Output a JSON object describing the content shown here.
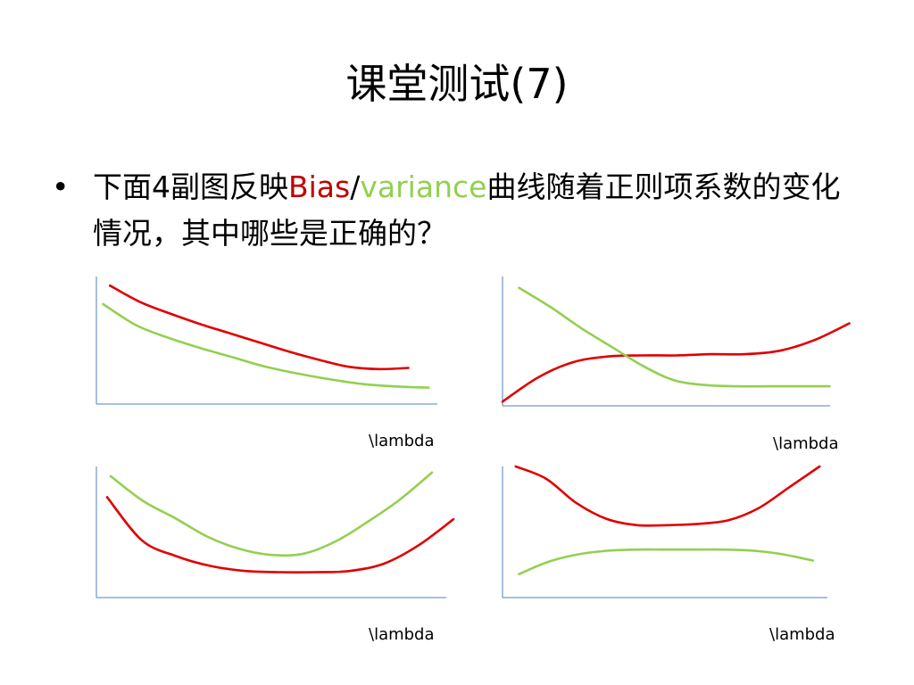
{
  "slide": {
    "title": "课堂测试(7)",
    "bullet_symbol": "•",
    "question_part1": "下面4副图反映",
    "bias_word": "Bias",
    "slash": "/",
    "variance_word": "variance",
    "question_part2": "曲线随着正则项系数的变化情况，其中哪些是正确的？"
  },
  "colors": {
    "bias": "#e00000",
    "variance": "#92d050",
    "axis": "#4f81bd"
  },
  "chart_data": [
    {
      "type": "line",
      "xlabel": "\\lambda",
      "x": [
        0.0,
        0.1,
        0.2,
        0.3,
        0.4,
        0.5,
        0.6,
        0.7,
        0.8,
        0.9,
        1.0
      ],
      "series": [
        {
          "color": "#e00000",
          "values": [
            0.96,
            0.82,
            0.72,
            0.63,
            0.55,
            0.47,
            0.39,
            0.32,
            0.26,
            0.24,
            0.25
          ],
          "x_start": 0.04,
          "x_end": 0.92
        },
        {
          "color": "#92d050",
          "values": [
            0.8,
            0.62,
            0.51,
            0.42,
            0.34,
            0.26,
            0.2,
            0.15,
            0.11,
            0.09,
            0.08
          ],
          "x_start": 0.02,
          "x_end": 0.98
        }
      ]
    },
    {
      "type": "line",
      "xlabel": "\\lambda",
      "x": [
        0.0,
        0.1,
        0.2,
        0.3,
        0.4,
        0.5,
        0.6,
        0.7,
        0.8,
        0.9,
        1.0
      ],
      "series": [
        {
          "color": "#e00000",
          "values": [
            0.02,
            0.22,
            0.35,
            0.4,
            0.41,
            0.41,
            0.42,
            0.42,
            0.45,
            0.54,
            0.68
          ],
          "x_start": 0.0,
          "x_end": 1.05
        },
        {
          "color": "#92d050",
          "values": [
            0.98,
            0.82,
            0.64,
            0.48,
            0.32,
            0.2,
            0.16,
            0.15,
            0.15,
            0.15,
            0.15
          ],
          "x_start": 0.05,
          "x_end": 0.99
        }
      ]
    },
    {
      "type": "line",
      "xlabel": "\\lambda",
      "x": [
        0.0,
        0.1,
        0.2,
        0.3,
        0.4,
        0.5,
        0.6,
        0.7,
        0.8,
        0.9,
        1.0
      ],
      "series": [
        {
          "color": "#e00000",
          "values": [
            0.78,
            0.43,
            0.3,
            0.22,
            0.18,
            0.17,
            0.17,
            0.18,
            0.24,
            0.39,
            0.6
          ],
          "x_start": 0.03,
          "x_end": 1.0
        },
        {
          "color": "#92d050",
          "values": [
            0.95,
            0.75,
            0.61,
            0.46,
            0.36,
            0.31,
            0.32,
            0.42,
            0.58,
            0.76,
            0.98
          ],
          "x_start": 0.04,
          "x_end": 0.94
        }
      ]
    },
    {
      "type": "line",
      "xlabel": "\\lambda",
      "x": [
        0.0,
        0.1,
        0.2,
        0.3,
        0.4,
        0.5,
        0.6,
        0.7,
        0.8,
        0.9,
        1.0
      ],
      "series": [
        {
          "color": "#e00000",
          "values": [
            1.0,
            0.9,
            0.7,
            0.57,
            0.52,
            0.52,
            0.53,
            0.56,
            0.66,
            0.83,
            1.0
          ],
          "x_start": 0.04,
          "x_end": 0.96
        },
        {
          "color": "#92d050",
          "values": [
            0.12,
            0.22,
            0.28,
            0.31,
            0.32,
            0.32,
            0.32,
            0.32,
            0.31,
            0.28,
            0.23
          ],
          "x_start": 0.05,
          "x_end": 0.94
        }
      ]
    }
  ]
}
